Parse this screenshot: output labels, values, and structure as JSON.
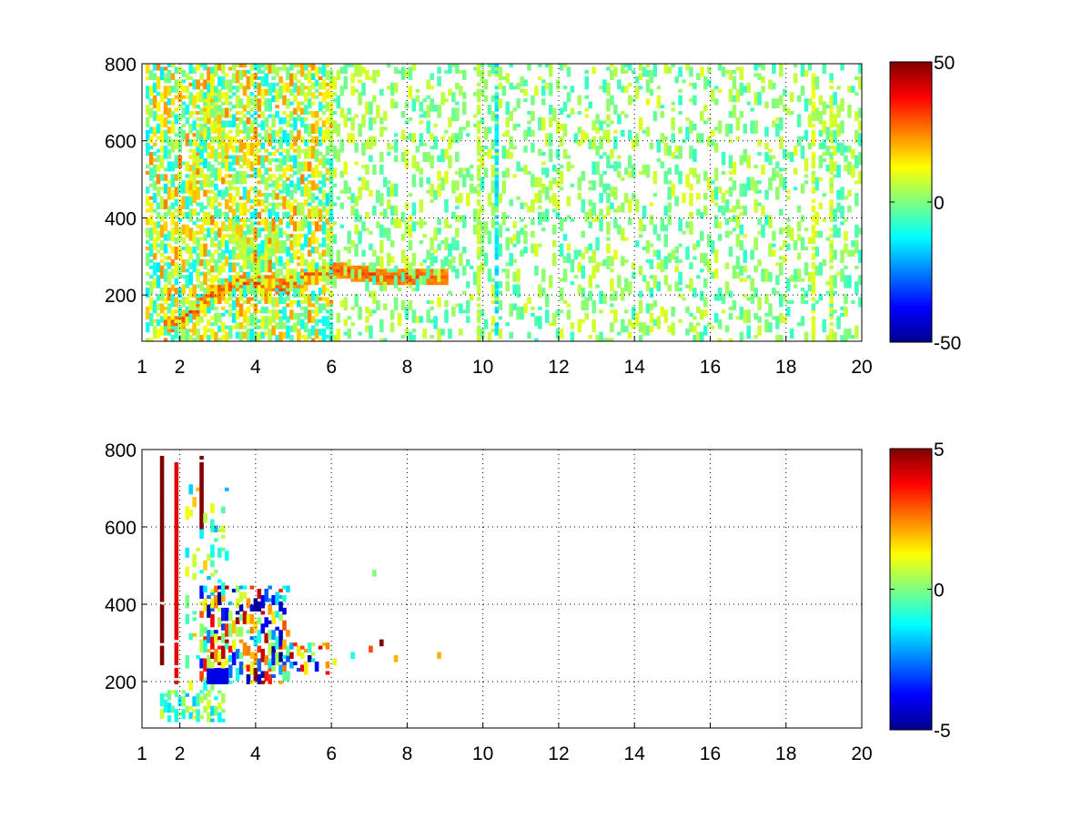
{
  "chart_data": [
    {
      "type": "heatmap",
      "title": "",
      "xlabel": "",
      "ylabel": "",
      "xlim": [
        1,
        20
      ],
      "ylim": [
        80,
        800
      ],
      "x_ticks": [
        1,
        2,
        4,
        6,
        8,
        10,
        12,
        14,
        16,
        18,
        20
      ],
      "x_tick_labels": [
        "1",
        "2",
        "4",
        "6",
        "8",
        "10",
        "12",
        "14",
        "16",
        "18",
        "20"
      ],
      "y_ticks": [
        200,
        400,
        600,
        800
      ],
      "y_tick_labels": [
        "200",
        "400",
        "600",
        "800"
      ],
      "grid": true,
      "grid_style": "dotted",
      "colormap": "jet",
      "colorbar": {
        "range": [
          -50,
          50
        ],
        "ticks": [
          -50,
          0,
          50
        ],
        "tick_labels": [
          "-50",
          "0",
          "50"
        ],
        "placement": "right"
      },
      "features": [
        {
          "kind": "ridge",
          "value": 30,
          "points": [
            [
              1.6,
              120
            ],
            [
              2.0,
              130
            ],
            [
              2.4,
              160
            ],
            [
              2.8,
              200
            ],
            [
              3.2,
              220
            ],
            [
              3.6,
              235
            ],
            [
              4.2,
              230
            ],
            [
              4.8,
              225
            ],
            [
              5.4,
              250
            ],
            [
              5.9,
              260
            ],
            [
              6.5,
              260
            ],
            [
              7.3,
              250
            ],
            [
              8.3,
              245
            ],
            [
              9.0,
              245
            ]
          ]
        },
        {
          "kind": "band",
          "value": 20,
          "points": [
            [
              2.3,
              480
            ],
            [
              2.6,
              600
            ],
            [
              2.8,
              750
            ],
            [
              3.2,
              560
            ]
          ]
        },
        {
          "kind": "band",
          "value": 12,
          "points": [
            [
              3.4,
              380
            ],
            [
              3.7,
              320
            ],
            [
              4.1,
              280
            ],
            [
              4.6,
              360
            ]
          ]
        },
        {
          "kind": "noise",
          "x_range": [
            1.1,
            6.0
          ],
          "value_range": [
            -15,
            25
          ],
          "density": 0.7
        },
        {
          "kind": "noise",
          "x_range": [
            6.0,
            20.0
          ],
          "value_range": [
            -8,
            10
          ],
          "density": 0.16
        },
        {
          "kind": "column",
          "x": 9.9,
          "value": 6
        },
        {
          "kind": "column",
          "x": 10.35,
          "value": -15
        },
        {
          "kind": "column",
          "x": 18.7,
          "value": 10
        },
        {
          "kind": "column",
          "x": 19.2,
          "value": 8
        }
      ]
    },
    {
      "type": "heatmap",
      "title": "",
      "xlabel": "",
      "ylabel": "",
      "xlim": [
        1,
        20
      ],
      "ylim": [
        80,
        800
      ],
      "x_ticks": [
        1,
        2,
        4,
        6,
        8,
        10,
        12,
        14,
        16,
        18,
        20
      ],
      "x_tick_labels": [
        "1",
        "2",
        "4",
        "6",
        "8",
        "10",
        "12",
        "14",
        "16",
        "18",
        "20"
      ],
      "y_ticks": [
        200,
        400,
        600,
        800
      ],
      "y_tick_labels": [
        "200",
        "400",
        "600",
        "800"
      ],
      "grid": true,
      "grid_style": "dotted",
      "colormap": "jet",
      "colorbar": {
        "range": [
          -5,
          5
        ],
        "ticks": [
          -5,
          0,
          5
        ],
        "tick_labels": [
          "-5",
          "0",
          "5"
        ],
        "placement": "right"
      },
      "features": [
        {
          "kind": "noise",
          "x_range": [
            2.6,
            4.8
          ],
          "y_range": [
            200,
            440
          ],
          "value_range": [
            -5,
            5
          ],
          "density": 0.45
        },
        {
          "kind": "noise",
          "x_range": [
            1.5,
            3.1
          ],
          "y_range": [
            100,
            170
          ],
          "value_range": [
            -2,
            1
          ],
          "density": 0.5
        },
        {
          "kind": "noise",
          "x_range": [
            2.2,
            3.2
          ],
          "y_range": [
            170,
            720
          ],
          "value_range": [
            -2,
            2
          ],
          "density": 0.08
        },
        {
          "kind": "blob",
          "x_range": [
            2.8,
            3.2
          ],
          "y_range": [
            195,
            230
          ],
          "value": -4
        },
        {
          "kind": "noise",
          "x_range": [
            4.4,
            5.9
          ],
          "y_range": [
            220,
            300
          ],
          "value_range": [
            -5,
            5
          ],
          "density": 0.3
        },
        {
          "kind": "line",
          "x": 1.5,
          "y_range": [
            250,
            780
          ],
          "value": 5
        },
        {
          "kind": "line",
          "x": 1.9,
          "y_range": [
            200,
            760
          ],
          "value": 4
        },
        {
          "kind": "line",
          "x": 2.6,
          "y_range": [
            600,
            780
          ],
          "value": 5
        },
        {
          "kind": "scatter",
          "points": [
            [
              6.1,
              250,
              1
            ],
            [
              6.6,
              265,
              -1
            ],
            [
              7.0,
              280,
              3
            ],
            [
              7.3,
              300,
              5
            ],
            [
              7.1,
              480,
              0
            ],
            [
              7.7,
              255,
              2
            ],
            [
              8.8,
              260,
              2
            ]
          ]
        }
      ]
    }
  ]
}
